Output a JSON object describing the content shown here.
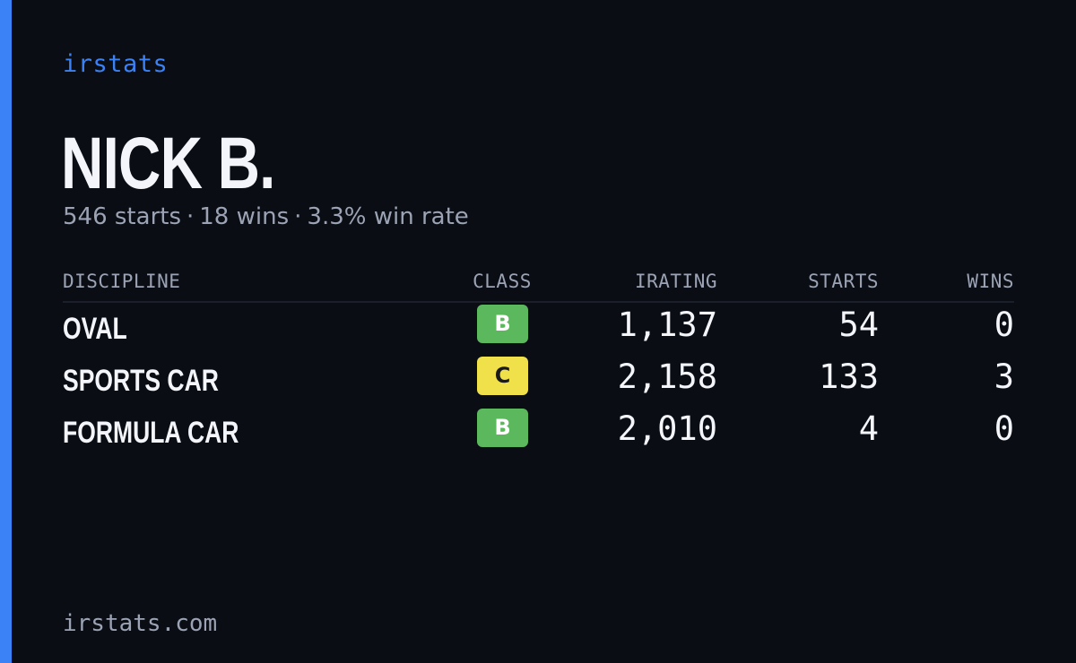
{
  "brand": "irstats",
  "driver": {
    "name": "NICK B.",
    "starts": "546 starts",
    "wins": "18 wins",
    "win_rate": "3.3% win rate",
    "separator": "·"
  },
  "table": {
    "headers": {
      "discipline": "DISCIPLINE",
      "class": "CLASS",
      "irating": "IRATING",
      "starts": "STARTS",
      "wins": "WINS"
    },
    "rows": [
      {
        "discipline": "OVAL",
        "class": "B",
        "class_color": "#5cb85c",
        "class_text_color": "#ffffff",
        "irating": "1,137",
        "starts": "54",
        "wins": "0"
      },
      {
        "discipline": "SPORTS CAR",
        "class": "C",
        "class_color": "#f0e14a",
        "class_text_color": "#1a1a1a",
        "irating": "2,158",
        "starts": "133",
        "wins": "3"
      },
      {
        "discipline": "FORMULA CAR",
        "class": "B",
        "class_color": "#5cb85c",
        "class_text_color": "#ffffff",
        "irating": "2,010",
        "starts": "4",
        "wins": "0"
      }
    ]
  },
  "footer": "irstats.com",
  "colors": {
    "accent": "#3b82f6",
    "background": "#0a0d14",
    "text": "#f3f5fa",
    "muted": "#9ba3b4"
  }
}
